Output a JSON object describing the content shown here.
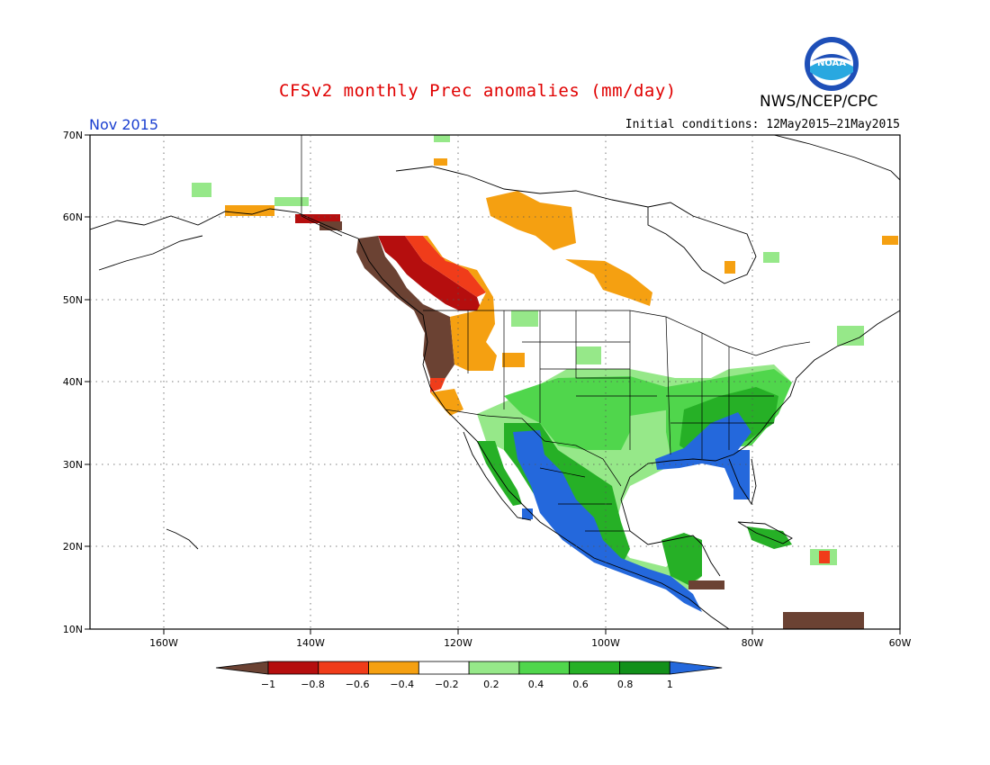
{
  "title": "CFSv2 monthly Prec anomalies (mm/day)",
  "organization": "NWS/NCEP/CPC",
  "logo_text": "NOAA",
  "valid_month": "Nov 2015",
  "initial_conditions": "Initial conditions: 12May2015–21May2015",
  "lat_labels": [
    "70N",
    "60N",
    "50N",
    "40N",
    "30N",
    "20N",
    "10N"
  ],
  "lon_labels": [
    "160W",
    "140W",
    "120W",
    "100W",
    "80W",
    "60W"
  ],
  "colorbar": {
    "labels": [
      "−1",
      "−0.8",
      "−0.6",
      "−0.4",
      "−0.2",
      "0.2",
      "0.4",
      "0.6",
      "0.8",
      "1"
    ],
    "colors": [
      "#6b4233",
      "#b50e0e",
      "#f03c1a",
      "#f5a011",
      "#ffffff",
      "#96e889",
      "#50d64c",
      "#26b026",
      "#12901a",
      "#2468dc"
    ]
  },
  "colors": {
    "title": "#e00000",
    "month": "#1a3fd0",
    "strong_dry": "#6b4233",
    "dry_red": "#b50e0e",
    "dry_orange": "#f03c1a",
    "dry_light": "#f5a011",
    "wet_light": "#96e889",
    "wet_mid": "#50d64c",
    "wet": "#26b026",
    "wet_strong": "#12901a",
    "very_wet": "#2468dc"
  }
}
